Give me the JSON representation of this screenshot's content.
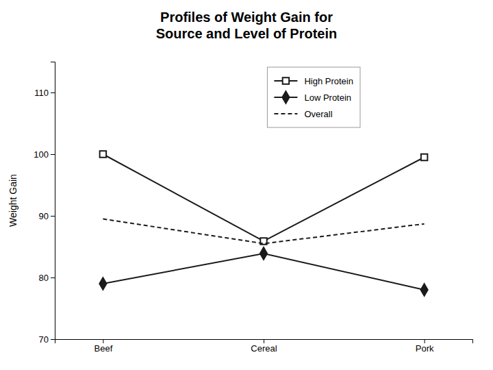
{
  "chart_data": {
    "type": "line",
    "title": "Profiles of Weight Gain for\nSource and Level of Protein",
    "ylabel": "Weight Gain",
    "categories": [
      "Beef",
      "Cereal",
      "Pork"
    ],
    "series": [
      {
        "name": "High Protein",
        "color": "#1a1a1a",
        "marker": "square-open",
        "line_style": "solid",
        "values": [
          100,
          85.9,
          99.5
        ]
      },
      {
        "name": "Low Protein",
        "color": "#1a1a1a",
        "marker": "diamond",
        "line_style": "solid",
        "values": [
          79,
          83.9,
          78
        ]
      },
      {
        "name": "Overall",
        "color": "#1a1a1a",
        "line_style": "dashed",
        "values": [
          89.5,
          85.5,
          88.7
        ]
      }
    ],
    "ylim": [
      70,
      115
    ],
    "yticks": [
      70,
      80,
      90,
      100,
      110
    ],
    "grid": false,
    "legend": "upper center"
  }
}
